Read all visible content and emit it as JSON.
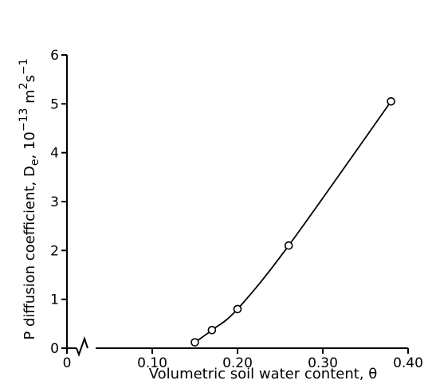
{
  "chart_data": {
    "type": "line",
    "title": "",
    "xlabel": "Volumetric soil water content, θ",
    "ylabel_main": "P diffusion coefficient, D",
    "ylabel_sub": "e",
    "ylabel_units": ", 10",
    "ylabel_exp": "−13",
    "ylabel_m": " m",
    "ylabel_m_exp": "2",
    "ylabel_s": "s",
    "ylabel_s_exp": "−1",
    "x_break": true,
    "x_break_before": 0.1,
    "xlim": [
      0.0,
      0.4
    ],
    "ylim": [
      0,
      6
    ],
    "grid": false,
    "x_ticks": [
      {
        "value": 0,
        "label": "0"
      },
      {
        "value": 0.1,
        "label": "0.10"
      },
      {
        "value": 0.2,
        "label": "0.20"
      },
      {
        "value": 0.3,
        "label": "0.30"
      },
      {
        "value": 0.4,
        "label": "0.40"
      }
    ],
    "y_ticks": [
      {
        "value": 0,
        "label": "0"
      },
      {
        "value": 1,
        "label": "1"
      },
      {
        "value": 2,
        "label": "2"
      },
      {
        "value": 3,
        "label": "3"
      },
      {
        "value": 4,
        "label": "4"
      },
      {
        "value": 5,
        "label": "5"
      },
      {
        "value": 6,
        "label": "6"
      }
    ],
    "series": [
      {
        "marker": "open-circle",
        "x": [
          0.15,
          0.17,
          0.2,
          0.26,
          0.38
        ],
        "y": [
          0.12,
          0.37,
          0.8,
          2.1,
          5.05
        ]
      }
    ]
  }
}
